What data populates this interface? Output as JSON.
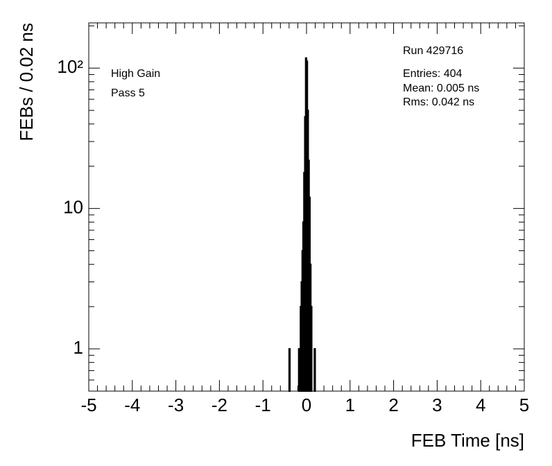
{
  "chart_data": {
    "type": "histogram",
    "xlabel": "FEB Time [ns]",
    "ylabel": "FEBs / 0.02 ns",
    "annotations": [
      "High Gain",
      "Pass 5"
    ],
    "stats": [
      "Run 429716",
      "Entries: 404",
      "Mean: 0.005 ns",
      "Rms: 0.042 ns"
    ],
    "bins": [
      -0.42,
      -0.4,
      -0.38,
      -0.36,
      -0.34,
      -0.32,
      -0.3,
      -0.28,
      -0.26,
      -0.24,
      -0.22,
      -0.2,
      -0.18,
      -0.16,
      -0.14,
      -0.12,
      -0.1,
      -0.08,
      -0.06,
      -0.04,
      -0.02,
      0,
      0.02,
      0.04,
      0.06,
      0.08,
      0.1,
      0.12,
      0.14,
      0.16,
      0.18,
      0.2,
      0.22
    ],
    "counts": [
      0,
      1,
      0,
      0,
      0,
      0,
      0,
      0,
      0,
      0,
      0,
      0,
      1,
      0,
      2,
      3,
      5,
      8,
      18,
      45,
      118,
      112,
      50,
      22,
      12,
      4,
      2,
      0,
      0,
      0,
      1,
      0
    ],
    "color": "#000000",
    "xlim": [
      -5,
      5
    ],
    "xticks": [
      -5,
      -4,
      -3,
      -2,
      -1,
      0,
      1,
      2,
      3,
      4,
      5
    ],
    "ylim": [
      0.5,
      210
    ],
    "log_y": true,
    "yticks": [
      1,
      10,
      {
        "value": 100,
        "label": "10²"
      }
    ]
  }
}
